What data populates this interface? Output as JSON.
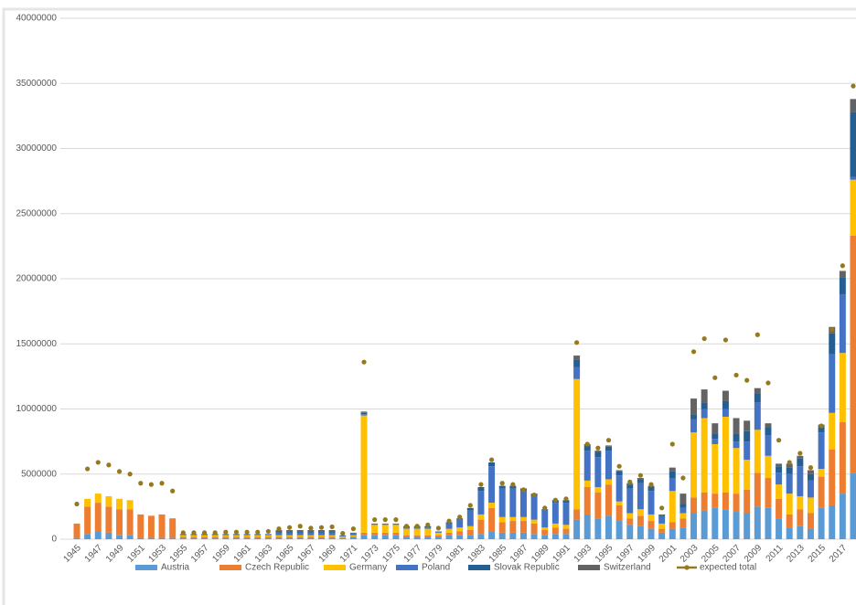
{
  "chart_data": {
    "type": "bar",
    "stacked": true,
    "categories": [
      "1945",
      null,
      "1947",
      null,
      "1949",
      null,
      "1951",
      null,
      "1953",
      null,
      "1955",
      null,
      "1957",
      null,
      "1959",
      null,
      "1961",
      null,
      "1963",
      null,
      "1965",
      null,
      "1967",
      null,
      "1969",
      null,
      "1971",
      null,
      "1973",
      null,
      "1975",
      null,
      "1977",
      null,
      "1979",
      null,
      "1981",
      null,
      "1983",
      null,
      "1985",
      null,
      "1987",
      null,
      "1989",
      null,
      "1991",
      null,
      "1993",
      null,
      "1995",
      null,
      "1997",
      null,
      "1999",
      null,
      "2001",
      null,
      "2003",
      null,
      "2005",
      null,
      "2007",
      null,
      "2009",
      null,
      "2011",
      null,
      "2013",
      null,
      "2015",
      null,
      "2017",
      null
    ],
    "series": [
      {
        "name": "Austria",
        "color": "#5b9bd5",
        "values": [
          100000,
          400000,
          600000,
          500000,
          300000,
          300000,
          100000,
          100000,
          100000,
          100000,
          100000,
          100000,
          100000,
          100000,
          100000,
          100000,
          100000,
          100000,
          100000,
          100000,
          100000,
          100000,
          100000,
          100000,
          100000,
          100000,
          200000,
          300000,
          300000,
          300000,
          300000,
          200000,
          200000,
          200000,
          200000,
          300000,
          300000,
          300000,
          400000,
          600000,
          500000,
          500000,
          500000,
          400000,
          300000,
          400000,
          400000,
          1500000,
          1900000,
          1600000,
          1800000,
          1400000,
          1100000,
          1000000,
          800000,
          500000,
          800000,
          900000,
          2000000,
          2200000,
          2400000,
          2300000,
          2100000,
          2000000,
          2500000,
          2400000,
          1600000,
          900000,
          1000000,
          800000,
          2400000,
          2600000,
          3500000,
          5100000
        ]
      },
      {
        "name": "Czech Republic",
        "color": "#ed7d31",
        "values": [
          1100000,
          2100000,
          2200000,
          2000000,
          2000000,
          2000000,
          1800000,
          1700000,
          1800000,
          1500000,
          100000,
          100000,
          100000,
          100000,
          100000,
          100000,
          100000,
          100000,
          100000,
          100000,
          100000,
          100000,
          100000,
          100000,
          100000,
          0,
          0,
          200000,
          200000,
          200000,
          200000,
          100000,
          100000,
          100000,
          100000,
          200000,
          300000,
          400000,
          1100000,
          1800000,
          800000,
          900000,
          900000,
          800000,
          400000,
          500000,
          400000,
          800000,
          2100000,
          2000000,
          2400000,
          1200000,
          500000,
          800000,
          600000,
          300000,
          500000,
          700000,
          1200000,
          1400000,
          1100000,
          1300000,
          1400000,
          1800000,
          2600000,
          2300000,
          1500000,
          1000000,
          1300000,
          1200000,
          2400000,
          4300000,
          5500000,
          18200000
        ]
      },
      {
        "name": "Germany",
        "color": "#ffc000",
        "values": [
          0,
          600000,
          700000,
          800000,
          800000,
          700000,
          0,
          0,
          0,
          0,
          100000,
          100000,
          100000,
          100000,
          100000,
          100000,
          100000,
          100000,
          100000,
          100000,
          100000,
          100000,
          100000,
          100000,
          100000,
          100000,
          100000,
          9000000,
          600000,
          600000,
          600000,
          500000,
          500000,
          500000,
          200000,
          300000,
          300000,
          300000,
          400000,
          400000,
          400000,
          300000,
          300000,
          300000,
          200000,
          300000,
          300000,
          10000000,
          500000,
          400000,
          400000,
          300000,
          400000,
          500000,
          500000,
          400000,
          2400000,
          400000,
          5000000,
          5700000,
          3800000,
          5800000,
          3500000,
          2300000,
          3300000,
          1700000,
          1100000,
          1600000,
          1000000,
          1200000,
          600000,
          2800000,
          5300000,
          4300000
        ]
      },
      {
        "name": "Poland",
        "color": "#4472c4",
        "values": [
          0,
          0,
          0,
          0,
          0,
          0,
          0,
          0,
          0,
          0,
          100000,
          100000,
          100000,
          100000,
          100000,
          100000,
          100000,
          100000,
          100000,
          200000,
          200000,
          200000,
          200000,
          200000,
          200000,
          100000,
          200000,
          100000,
          100000,
          100000,
          100000,
          100000,
          100000,
          100000,
          100000,
          400000,
          600000,
          1200000,
          1800000,
          2800000,
          2200000,
          2200000,
          2000000,
          1800000,
          1300000,
          1600000,
          1700000,
          900000,
          2300000,
          2300000,
          2200000,
          2000000,
          1900000,
          2000000,
          1800000,
          500000,
          1000000,
          400000,
          1000000,
          700000,
          400000,
          600000,
          500000,
          1400000,
          2100000,
          1600000,
          900000,
          1500000,
          2300000,
          1300000,
          2800000,
          4500000,
          4500000,
          200000
        ]
      },
      {
        "name": "Slovak Republic",
        "color": "#255e91",
        "values": [
          0,
          0,
          0,
          0,
          0,
          0,
          0,
          0,
          0,
          0,
          0,
          0,
          0,
          0,
          0,
          0,
          0,
          0,
          0,
          100000,
          100000,
          100000,
          100000,
          100000,
          100000,
          0,
          0,
          100000,
          0,
          0,
          0,
          100000,
          100000,
          100000,
          0,
          100000,
          100000,
          200000,
          300000,
          300000,
          200000,
          200000,
          200000,
          200000,
          100000,
          200000,
          200000,
          600000,
          400000,
          400000,
          300000,
          300000,
          300000,
          300000,
          300000,
          100000,
          500000,
          300000,
          400000,
          500000,
          400000,
          600000,
          600000,
          800000,
          700000,
          600000,
          500000,
          500000,
          600000,
          500000,
          400000,
          1600000,
          1300000,
          5000000
        ]
      },
      {
        "name": "Switzerland",
        "color": "#636363",
        "values": [
          0,
          0,
          0,
          0,
          0,
          0,
          0,
          0,
          0,
          0,
          0,
          0,
          0,
          0,
          0,
          0,
          0,
          0,
          0,
          100000,
          100000,
          100000,
          100000,
          100000,
          100000,
          0,
          0,
          100000,
          0,
          0,
          0,
          0,
          0,
          0,
          0,
          0,
          0,
          0,
          0,
          0,
          0,
          0,
          0,
          0,
          0,
          0,
          0,
          300000,
          100000,
          100000,
          100000,
          100000,
          100000,
          100000,
          100000,
          100000,
          300000,
          800000,
          1200000,
          1000000,
          800000,
          800000,
          1200000,
          800000,
          400000,
          300000,
          200000,
          300000,
          200000,
          300000,
          200000,
          500000,
          500000,
          1000000
        ]
      },
      {
        "name": "expected total",
        "color": "#94791f",
        "type": "line",
        "values": [
          2700000,
          5400000,
          5900000,
          5700000,
          5200000,
          5000000,
          4300000,
          4200000,
          4300000,
          3700000,
          500000,
          500000,
          500000,
          500000,
          550000,
          550000,
          550000,
          550000,
          600000,
          800000,
          900000,
          1000000,
          850000,
          900000,
          950000,
          450000,
          800000,
          13600000,
          1500000,
          1500000,
          1500000,
          1000000,
          1000000,
          1100000,
          850000,
          1400000,
          1700000,
          2600000,
          4200000,
          6100000,
          4300000,
          4200000,
          3800000,
          3400000,
          2400000,
          3000000,
          3100000,
          15100000,
          7300000,
          7000000,
          7600000,
          5600000,
          4400000,
          4900000,
          4200000,
          2400000,
          7300000,
          4700000,
          14400000,
          15400000,
          12400000,
          15300000,
          12600000,
          12200000,
          15700000,
          12000000,
          7600000,
          5900000,
          6600000,
          5500000,
          8700000,
          16100000,
          21000000,
          34800000
        ]
      }
    ],
    "ylim": [
      0,
      40000000
    ],
    "yticks": [
      0,
      5000000,
      10000000,
      15000000,
      20000000,
      25000000,
      30000000,
      35000000,
      40000000
    ],
    "grid": true,
    "legend": "bottom"
  }
}
